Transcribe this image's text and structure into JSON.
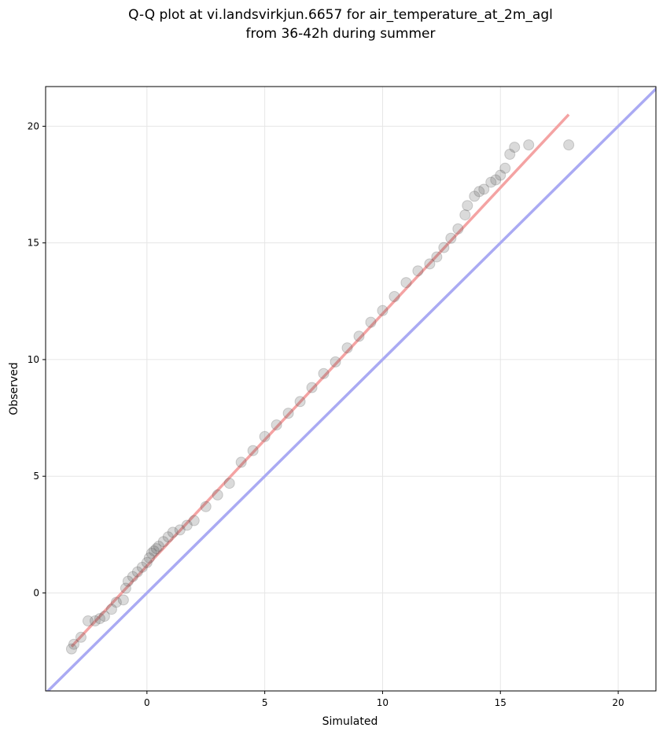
{
  "chart_data": {
    "type": "scatter",
    "title": "Q-Q plot at vi.landsvirkjun.6657 for air_temperature_at_2m_agl",
    "subtitle": "from 36-42h during summer",
    "xlabel": "Simulated",
    "ylabel": "Observed",
    "xlim": [
      -4.3,
      21.6
    ],
    "ylim": [
      -4.2,
      21.7
    ],
    "x_ticks": [
      0,
      5,
      10,
      15,
      20
    ],
    "y_ticks": [
      0,
      5,
      10,
      15,
      20
    ],
    "grid": true,
    "legend": "none",
    "quantile_points": {
      "x": [
        -3.2,
        -3.1,
        -2.8,
        -2.5,
        -2.2,
        -2.0,
        -1.8,
        -1.5,
        -1.3,
        -1.0,
        -0.9,
        -0.8,
        -0.6,
        -0.4,
        -0.2,
        0.0,
        0.1,
        0.2,
        0.3,
        0.4,
        0.5,
        0.7,
        0.9,
        1.1,
        1.4,
        1.7,
        2.0,
        2.5,
        3.0,
        3.5,
        4.0,
        4.5,
        5.0,
        5.5,
        6.0,
        6.5,
        7.0,
        7.5,
        8.0,
        8.5,
        9.0,
        9.5,
        10.0,
        10.5,
        11.0,
        11.5,
        12.0,
        12.3,
        12.6,
        12.9,
        13.2,
        13.5,
        13.6,
        13.9,
        14.1,
        14.3,
        14.6,
        14.8,
        15.0,
        15.2,
        15.4,
        15.6,
        16.2,
        17.9
      ],
      "y": [
        -2.4,
        -2.2,
        -1.9,
        -1.2,
        -1.2,
        -1.1,
        -1.0,
        -0.7,
        -0.4,
        -0.3,
        0.2,
        0.5,
        0.7,
        0.9,
        1.1,
        1.3,
        1.5,
        1.7,
        1.8,
        1.9,
        2.0,
        2.2,
        2.4,
        2.6,
        2.7,
        2.9,
        3.1,
        3.7,
        4.2,
        4.7,
        5.6,
        6.1,
        6.7,
        7.2,
        7.7,
        8.2,
        8.8,
        9.4,
        9.9,
        10.5,
        11.0,
        11.6,
        12.1,
        12.7,
        13.3,
        13.8,
        14.1,
        14.4,
        14.8,
        15.2,
        15.6,
        16.2,
        16.6,
        17.0,
        17.2,
        17.3,
        17.6,
        17.7,
        17.9,
        18.2,
        18.8,
        19.1,
        19.2,
        19.2
      ]
    },
    "fit_line": {
      "x": [
        -3.2,
        17.9
      ],
      "y": [
        -2.3,
        20.5
      ],
      "color": "#f4a3a3"
    },
    "reference_line": {
      "slope": 1,
      "intercept": 0,
      "color": "#aaaaf3"
    },
    "point_color": "#555555"
  }
}
